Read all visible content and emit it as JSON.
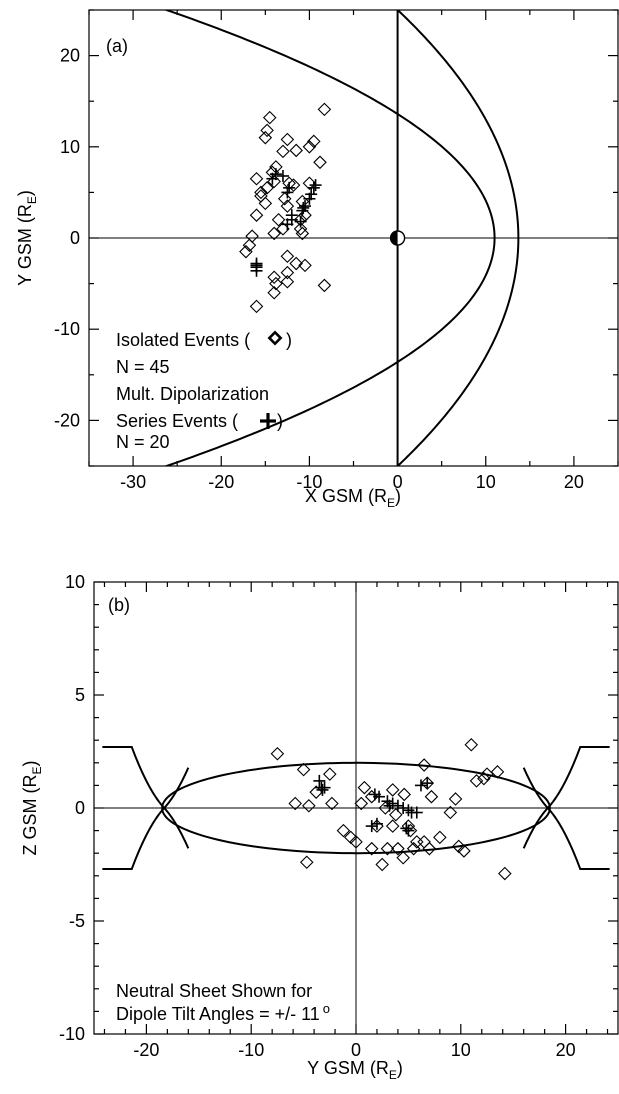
{
  "chart_data": [
    {
      "type": "scatter",
      "panel_label": "(a)",
      "xlabel": "X GSM (R",
      "xlabel_sub": "E",
      "ylabel": "Y GSM (R",
      "ylabel_sub": "E",
      "xlim": [
        -35,
        25
      ],
      "ylim": [
        -25,
        25
      ],
      "xticks": [
        -30,
        -20,
        -10,
        0,
        10,
        20
      ],
      "yticks": [
        -20,
        -10,
        0,
        10,
        20
      ],
      "annotations": {
        "line1": "Isolated Events (",
        "line1_close": ")",
        "line2": "N = 45",
        "line3": "Mult. Dipolarization",
        "line4": "Series  Events (",
        "line4_close": ")",
        "line5": "N = 20"
      },
      "series": [
        {
          "name": "Isolated Events",
          "marker": "diamond",
          "points": [
            [
              -14.5,
              13.2
            ],
            [
              -8.3,
              14.1
            ],
            [
              -14.8,
              11.8
            ],
            [
              -15.0,
              11.0
            ],
            [
              -12.5,
              10.8
            ],
            [
              -9.5,
              10.6
            ],
            [
              -10.0,
              10.0
            ],
            [
              -11.5,
              9.6
            ],
            [
              -13.0,
              9.5
            ],
            [
              -8.8,
              8.3
            ],
            [
              -13.8,
              7.8
            ],
            [
              -14.2,
              7.2
            ],
            [
              -16.0,
              6.5
            ],
            [
              -14.0,
              6.2
            ],
            [
              -12.3,
              6.0
            ],
            [
              -10.0,
              6.0
            ],
            [
              -14.8,
              5.5
            ],
            [
              -15.5,
              4.6
            ],
            [
              -12.8,
              4.3
            ],
            [
              -10.8,
              4.0
            ],
            [
              -15.0,
              3.8
            ],
            [
              -12.5,
              3.5
            ],
            [
              -16.0,
              2.5
            ],
            [
              -13.5,
              2.0
            ],
            [
              -11.0,
              2.0
            ],
            [
              -11.0,
              1.0
            ],
            [
              -14.0,
              0.5
            ],
            [
              -10.8,
              0.5
            ],
            [
              -16.5,
              0.2
            ],
            [
              -16.8,
              -0.8
            ],
            [
              -17.2,
              -1.5
            ],
            [
              -12.5,
              -2.0
            ],
            [
              -11.5,
              -2.8
            ],
            [
              -10.5,
              -3.0
            ],
            [
              -12.5,
              -3.8
            ],
            [
              -14.0,
              -4.3
            ],
            [
              -12.5,
              -4.8
            ],
            [
              -13.8,
              -5.0
            ],
            [
              -14.0,
              -6.0
            ],
            [
              -8.3,
              -5.2
            ],
            [
              -16.0,
              -7.5
            ],
            [
              -15.5,
              5.0
            ],
            [
              -11.8,
              5.8
            ],
            [
              -10.5,
              2.5
            ],
            [
              -13.0,
              1.0
            ]
          ]
        },
        {
          "name": "Mult. Dipolarization Series Events",
          "marker": "plus",
          "points": [
            [
              -13.8,
              7.0
            ],
            [
              -14.2,
              6.5
            ],
            [
              -12.5,
              5.0
            ],
            [
              -9.3,
              5.8
            ],
            [
              -9.8,
              4.8
            ],
            [
              -10.0,
              4.3
            ],
            [
              -10.5,
              3.5
            ],
            [
              -10.8,
              3.0
            ],
            [
              -12.0,
              2.5
            ],
            [
              -12.0,
              2.0
            ],
            [
              -11.0,
              1.8
            ],
            [
              -12.5,
              1.5
            ],
            [
              -16.0,
              -2.8
            ],
            [
              -16.0,
              -3.2
            ],
            [
              -16.0,
              -3.6
            ],
            [
              -12.3,
              5.5
            ],
            [
              -9.5,
              5.5
            ],
            [
              -10.7,
              3.3
            ],
            [
              -16.0,
              -3.0
            ],
            [
              -13.0,
              6.8
            ]
          ]
        }
      ]
    },
    {
      "type": "scatter",
      "panel_label": "(b)",
      "xlabel": "Y GSM (R",
      "xlabel_sub": "E",
      "ylabel": "Z GSM (R",
      "ylabel_sub": "E",
      "xlim": [
        -25,
        25
      ],
      "ylim": [
        -10,
        10
      ],
      "xticks": [
        -20,
        -10,
        0,
        10,
        20
      ],
      "yticks": [
        -10,
        -5,
        0,
        5,
        10
      ],
      "annotations": {
        "line1": "Neutral Sheet Shown for",
        "line2": "Dipole Tilt Angles = +/- 11",
        "degree": "o"
      },
      "series": [
        {
          "name": "Isolated Events",
          "marker": "diamond",
          "points": [
            [
              -7.5,
              2.4
            ],
            [
              -5.0,
              1.7
            ],
            [
              -5.8,
              0.2
            ],
            [
              -4.5,
              0.1
            ],
            [
              -3.8,
              0.7
            ],
            [
              -2.5,
              1.5
            ],
            [
              -2.3,
              0.2
            ],
            [
              -1.2,
              -1.0
            ],
            [
              -0.5,
              -1.3
            ],
            [
              0.0,
              -1.5
            ],
            [
              0.5,
              0.2
            ],
            [
              0.8,
              0.9
            ],
            [
              1.5,
              0.5
            ],
            [
              2.0,
              -0.8
            ],
            [
              1.5,
              -1.8
            ],
            [
              2.5,
              -2.5
            ],
            [
              3.0,
              -1.8
            ],
            [
              3.5,
              -0.8
            ],
            [
              3.5,
              0.8
            ],
            [
              4.0,
              -1.8
            ],
            [
              4.5,
              -2.2
            ],
            [
              5.0,
              -0.8
            ],
            [
              5.5,
              -1.8
            ],
            [
              5.8,
              -1.5
            ],
            [
              6.5,
              1.9
            ],
            [
              6.5,
              -1.5
            ],
            [
              7.0,
              -1.8
            ],
            [
              7.2,
              0.5
            ],
            [
              8.0,
              -1.3
            ],
            [
              9.5,
              0.4
            ],
            [
              9.8,
              -1.7
            ],
            [
              10.3,
              -1.9
            ],
            [
              11.0,
              2.8
            ],
            [
              11.5,
              1.2
            ],
            [
              12.2,
              1.3
            ],
            [
              12.5,
              1.5
            ],
            [
              13.5,
              1.6
            ],
            [
              14.2,
              -2.9
            ],
            [
              -4.7,
              -2.4
            ],
            [
              4.6,
              0.6
            ],
            [
              5.2,
              -1.0
            ],
            [
              2.8,
              0.0
            ],
            [
              3.8,
              -0.3
            ],
            [
              6.8,
              1.1
            ],
            [
              9.0,
              -0.2
            ]
          ]
        },
        {
          "name": "Mult. Dipolarization Series Events",
          "marker": "plus",
          "points": [
            [
              -3.5,
              1.2
            ],
            [
              -3.2,
              0.8
            ],
            [
              -3.0,
              0.9
            ],
            [
              1.8,
              0.6
            ],
            [
              2.2,
              0.5
            ],
            [
              3.0,
              0.3
            ],
            [
              3.5,
              0.2
            ],
            [
              4.0,
              0.1
            ],
            [
              4.5,
              0.0
            ],
            [
              5.0,
              -0.1
            ],
            [
              5.3,
              -0.2
            ],
            [
              5.8,
              -0.2
            ],
            [
              6.2,
              1.0
            ],
            [
              6.8,
              1.1
            ],
            [
              5.0,
              -1.0
            ],
            [
              2.0,
              -0.7
            ],
            [
              -3.3,
              0.9
            ],
            [
              1.5,
              -0.8
            ],
            [
              4.8,
              -0.9
            ],
            [
              3.2,
              0.1
            ]
          ]
        }
      ]
    }
  ]
}
